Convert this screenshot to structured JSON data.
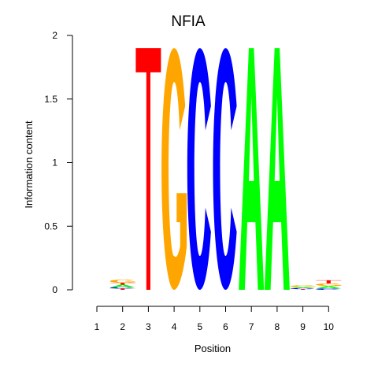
{
  "chart_data": {
    "type": "sequence-logo",
    "title": "NFIA",
    "xlabel": "Position",
    "ylabel": "Information content",
    "ylim": [
      0,
      2
    ],
    "y_ticks": [
      0,
      0.5,
      1,
      1.5,
      2
    ],
    "y_tick_labels": [
      "0",
      "0.5",
      "1",
      "1.5",
      "2"
    ],
    "positions": [
      1,
      2,
      3,
      4,
      5,
      6,
      7,
      8,
      9,
      10
    ],
    "position_labels": [
      "1",
      "2",
      "3",
      "4",
      "5",
      "6",
      "7",
      "8",
      "9",
      "10"
    ],
    "letter_colors": {
      "A": "#00ff00",
      "C": "#0000ff",
      "G": "#ffa500",
      "T": "#ff0000"
    },
    "columns": [
      {
        "position": 1,
        "letters": []
      },
      {
        "position": 2,
        "letters": [
          {
            "base": "T",
            "height": 0.01
          },
          {
            "base": "C",
            "height": 0.01
          },
          {
            "base": "A",
            "height": 0.02
          },
          {
            "base": "T",
            "height": 0.015
          },
          {
            "base": "G",
            "height": 0.025
          }
        ]
      },
      {
        "position": 3,
        "letters": [
          {
            "base": "T",
            "height": 1.9
          }
        ]
      },
      {
        "position": 4,
        "letters": [
          {
            "base": "G",
            "height": 1.9
          }
        ]
      },
      {
        "position": 5,
        "letters": [
          {
            "base": "C",
            "height": 1.9
          }
        ]
      },
      {
        "position": 6,
        "letters": [
          {
            "base": "C",
            "height": 1.9
          }
        ]
      },
      {
        "position": 7,
        "letters": [
          {
            "base": "A",
            "height": 1.9
          }
        ]
      },
      {
        "position": 8,
        "letters": [
          {
            "base": "A",
            "height": 1.9
          }
        ]
      },
      {
        "position": 9,
        "letters": [
          {
            "base": "T",
            "height": 0.005
          },
          {
            "base": "C",
            "height": 0.008
          },
          {
            "base": "A",
            "height": 0.01
          },
          {
            "base": "G",
            "height": 0.012
          }
        ]
      },
      {
        "position": 10,
        "letters": [
          {
            "base": "C",
            "height": 0.01
          },
          {
            "base": "A",
            "height": 0.02
          },
          {
            "base": "G",
            "height": 0.02
          },
          {
            "base": "T",
            "height": 0.025
          }
        ]
      }
    ]
  }
}
